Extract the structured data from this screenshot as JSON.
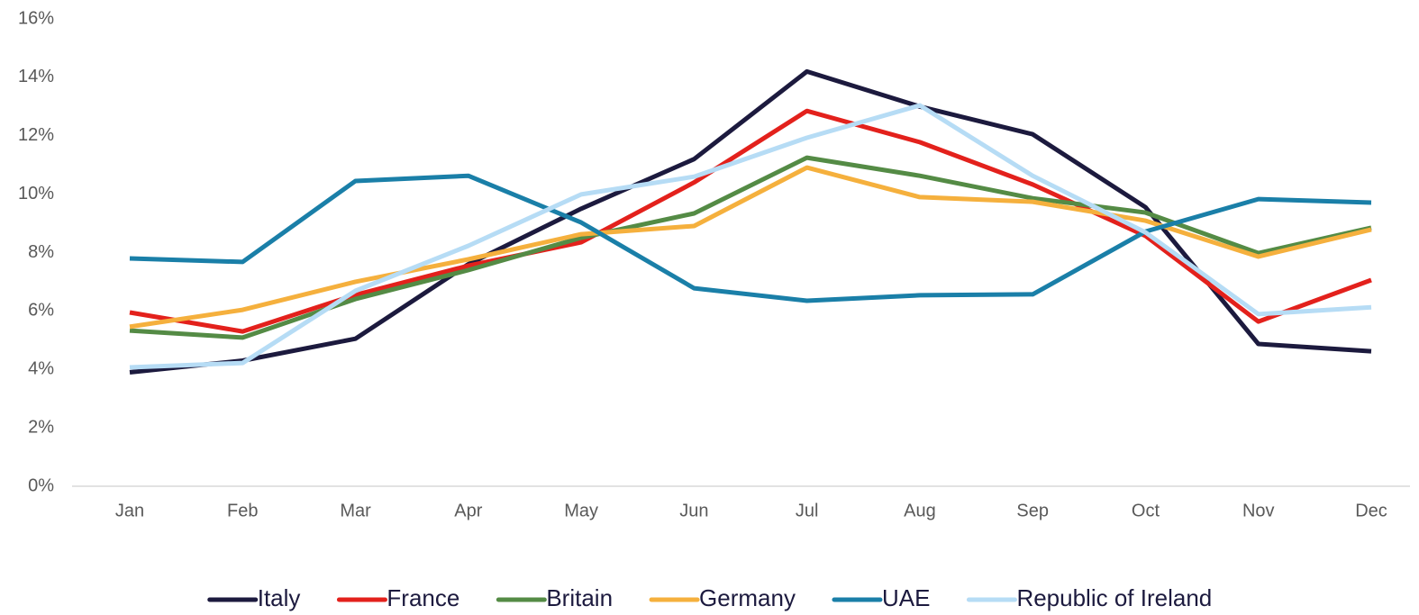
{
  "chart_data": {
    "type": "line",
    "categories": [
      "Jan",
      "Feb",
      "Mar",
      "Apr",
      "May",
      "Jun",
      "Jul",
      "Aug",
      "Sep",
      "Oct",
      "Nov",
      "Dec"
    ],
    "series": [
      {
        "name": "Italy",
        "color": "#1c1a3e",
        "values": [
          3.9,
          4.3,
          5.05,
          7.6,
          9.5,
          11.2,
          14.2,
          13.0,
          12.05,
          9.55,
          4.87,
          4.62
        ]
      },
      {
        "name": "France",
        "color": "#e3211c",
        "values": [
          5.95,
          5.3,
          6.55,
          7.55,
          8.35,
          10.4,
          12.85,
          11.78,
          10.33,
          8.57,
          5.64,
          7.06
        ]
      },
      {
        "name": "Britain",
        "color": "#548b45",
        "values": [
          5.33,
          5.09,
          6.41,
          7.4,
          8.51,
          9.34,
          11.25,
          10.63,
          9.86,
          9.37,
          7.98,
          8.85
        ]
      },
      {
        "name": "Germany",
        "color": "#f5b03d",
        "values": [
          5.46,
          6.04,
          7.0,
          7.77,
          8.63,
          8.91,
          10.91,
          9.9,
          9.74,
          9.09,
          7.86,
          8.79
        ]
      },
      {
        "name": "UAE",
        "color": "#1a7fa8",
        "values": [
          7.8,
          7.68,
          10.45,
          10.63,
          9.03,
          6.78,
          6.35,
          6.54,
          6.57,
          8.72,
          9.83,
          9.71
        ]
      },
      {
        "name": "Republic of Ireland",
        "color": "#b6dcf5",
        "values": [
          4.07,
          4.22,
          6.69,
          8.23,
          9.99,
          10.6,
          11.93,
          13.04,
          10.63,
          8.69,
          5.89,
          6.13
        ]
      }
    ],
    "ylim": [
      0,
      16
    ],
    "yticks": [
      {
        "value": 0,
        "label": "0%"
      },
      {
        "value": 2,
        "label": "2%"
      },
      {
        "value": 4,
        "label": "4%"
      },
      {
        "value": 6,
        "label": "6%"
      },
      {
        "value": 8,
        "label": "8%"
      },
      {
        "value": 10,
        "label": "10%"
      },
      {
        "value": 12,
        "label": "12%"
      },
      {
        "value": 14,
        "label": "14%"
      },
      {
        "value": 16,
        "label": "16%"
      }
    ],
    "grid": false,
    "legend": "bottom"
  }
}
